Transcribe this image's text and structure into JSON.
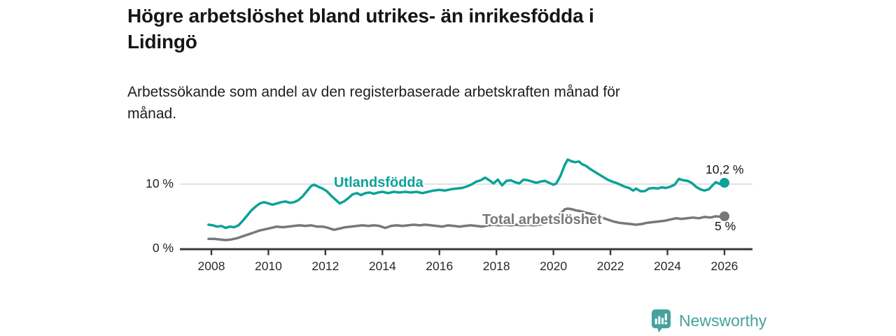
{
  "header": {
    "title": "Högre arbetslöshet bland utrikes- än inrikesfödda i\nLidingö",
    "subtitle": "Arbetssökande som andel av den registerbaserade arbetskraften månad för\nmånad."
  },
  "colors": {
    "accent_teal": "#0ba29a",
    "line_gray": "#77787b",
    "brand_teal": "#46a29d",
    "grid": "#d9d9d9",
    "axis": "#3a3a3a",
    "tick_text": "#2a2a2a"
  },
  "footer": {
    "brand": "Newsworthy"
  },
  "chart_data": {
    "type": "line",
    "title": "Högre arbetslöshet bland utrikes- än inrikesfödda i Lidingö",
    "subtitle": "Arbetssökande som andel av den registerbaserade arbetskraften månad för månad.",
    "unit": "%",
    "grid": "horizontal, only at 10 %",
    "legend_position": "inline labels on lines",
    "x_axis": {
      "ticks": [
        2008,
        2010,
        2012,
        2014,
        2016,
        2018,
        2020,
        2022,
        2024,
        2026
      ],
      "tick_labels": [
        "2008",
        "2010",
        "2012",
        "2014",
        "2016",
        "2018",
        "2020",
        "2022",
        "2024",
        "2026"
      ],
      "xlim": [
        2007.9,
        2027.0
      ]
    },
    "y_axis": {
      "ticks": [
        0,
        10
      ],
      "tick_labels": [
        "0 %",
        "10 %"
      ],
      "ylim": [
        0,
        14.5
      ]
    },
    "series": [
      {
        "name": "Utlandsfödda",
        "color": "#0ba29a",
        "end_label": "10,2 %",
        "end_value": 10.2,
        "points": [
          [
            2007.9,
            3.7
          ],
          [
            2008.05,
            3.6
          ],
          [
            2008.2,
            3.4
          ],
          [
            2008.35,
            3.5
          ],
          [
            2008.5,
            3.2
          ],
          [
            2008.65,
            3.4
          ],
          [
            2008.8,
            3.3
          ],
          [
            2008.95,
            3.6
          ],
          [
            2009.1,
            4.3
          ],
          [
            2009.25,
            5.1
          ],
          [
            2009.4,
            5.9
          ],
          [
            2009.55,
            6.5
          ],
          [
            2009.7,
            7.0
          ],
          [
            2009.85,
            7.2
          ],
          [
            2010.0,
            7.0
          ],
          [
            2010.15,
            6.8
          ],
          [
            2010.3,
            7.0
          ],
          [
            2010.45,
            7.2
          ],
          [
            2010.6,
            7.3
          ],
          [
            2010.75,
            7.1
          ],
          [
            2010.9,
            7.2
          ],
          [
            2011.05,
            7.5
          ],
          [
            2011.2,
            8.1
          ],
          [
            2011.35,
            8.9
          ],
          [
            2011.5,
            9.7
          ],
          [
            2011.6,
            9.9
          ],
          [
            2011.75,
            9.6
          ],
          [
            2011.9,
            9.3
          ],
          [
            2012.05,
            8.9
          ],
          [
            2012.2,
            8.2
          ],
          [
            2012.35,
            7.6
          ],
          [
            2012.5,
            7.0
          ],
          [
            2012.65,
            7.3
          ],
          [
            2012.8,
            7.8
          ],
          [
            2012.95,
            8.4
          ],
          [
            2013.1,
            8.6
          ],
          [
            2013.25,
            8.3
          ],
          [
            2013.4,
            8.6
          ],
          [
            2013.55,
            8.7
          ],
          [
            2013.7,
            8.5
          ],
          [
            2013.85,
            8.7
          ],
          [
            2014.0,
            8.8
          ],
          [
            2014.2,
            8.6
          ],
          [
            2014.4,
            8.8
          ],
          [
            2014.6,
            8.7
          ],
          [
            2014.8,
            8.8
          ],
          [
            2015.0,
            8.7
          ],
          [
            2015.2,
            8.8
          ],
          [
            2015.4,
            8.6
          ],
          [
            2015.6,
            8.8
          ],
          [
            2015.8,
            9.0
          ],
          [
            2016.0,
            9.1
          ],
          [
            2016.2,
            9.0
          ],
          [
            2016.4,
            9.2
          ],
          [
            2016.6,
            9.3
          ],
          [
            2016.8,
            9.4
          ],
          [
            2017.0,
            9.7
          ],
          [
            2017.15,
            10.0
          ],
          [
            2017.3,
            10.4
          ],
          [
            2017.45,
            10.6
          ],
          [
            2017.6,
            11.0
          ],
          [
            2017.75,
            10.6
          ],
          [
            2017.9,
            10.1
          ],
          [
            2018.05,
            10.7
          ],
          [
            2018.2,
            9.8
          ],
          [
            2018.35,
            10.5
          ],
          [
            2018.5,
            10.6
          ],
          [
            2018.65,
            10.3
          ],
          [
            2018.8,
            10.1
          ],
          [
            2018.95,
            10.7
          ],
          [
            2019.1,
            10.6
          ],
          [
            2019.25,
            10.4
          ],
          [
            2019.4,
            10.2
          ],
          [
            2019.55,
            10.4
          ],
          [
            2019.7,
            10.5
          ],
          [
            2019.85,
            10.2
          ],
          [
            2020.0,
            9.9
          ],
          [
            2020.1,
            10.1
          ],
          [
            2020.25,
            11.3
          ],
          [
            2020.4,
            13.0
          ],
          [
            2020.5,
            13.8
          ],
          [
            2020.6,
            13.6
          ],
          [
            2020.75,
            13.4
          ],
          [
            2020.9,
            13.5
          ],
          [
            2021.0,
            13.1
          ],
          [
            2021.15,
            12.8
          ],
          [
            2021.3,
            12.3
          ],
          [
            2021.45,
            11.9
          ],
          [
            2021.6,
            11.5
          ],
          [
            2021.75,
            11.1
          ],
          [
            2021.9,
            10.7
          ],
          [
            2022.05,
            10.4
          ],
          [
            2022.2,
            10.2
          ],
          [
            2022.35,
            9.9
          ],
          [
            2022.5,
            9.6
          ],
          [
            2022.65,
            9.4
          ],
          [
            2022.8,
            9.0
          ],
          [
            2022.9,
            9.3
          ],
          [
            2023.05,
            8.9
          ],
          [
            2023.2,
            8.9
          ],
          [
            2023.35,
            9.3
          ],
          [
            2023.5,
            9.4
          ],
          [
            2023.65,
            9.3
          ],
          [
            2023.8,
            9.5
          ],
          [
            2023.95,
            9.4
          ],
          [
            2024.1,
            9.6
          ],
          [
            2024.25,
            9.9
          ],
          [
            2024.4,
            10.8
          ],
          [
            2024.55,
            10.6
          ],
          [
            2024.7,
            10.5
          ],
          [
            2024.85,
            10.2
          ],
          [
            2025.0,
            9.6
          ],
          [
            2025.15,
            9.2
          ],
          [
            2025.3,
            9.0
          ],
          [
            2025.45,
            9.2
          ],
          [
            2025.6,
            9.9
          ],
          [
            2025.7,
            10.3
          ],
          [
            2025.8,
            10.1
          ],
          [
            2025.9,
            9.9
          ],
          [
            2026.0,
            10.2
          ]
        ]
      },
      {
        "name": "Total arbetslöshet",
        "color": "#77787b",
        "end_label": "5 %",
        "end_value": 5.0,
        "points": [
          [
            2007.9,
            1.5
          ],
          [
            2008.1,
            1.5
          ],
          [
            2008.3,
            1.4
          ],
          [
            2008.5,
            1.3
          ],
          [
            2008.7,
            1.4
          ],
          [
            2008.9,
            1.6
          ],
          [
            2009.1,
            1.9
          ],
          [
            2009.3,
            2.2
          ],
          [
            2009.5,
            2.5
          ],
          [
            2009.7,
            2.8
          ],
          [
            2009.9,
            3.0
          ],
          [
            2010.1,
            3.2
          ],
          [
            2010.3,
            3.4
          ],
          [
            2010.5,
            3.3
          ],
          [
            2010.7,
            3.4
          ],
          [
            2010.9,
            3.5
          ],
          [
            2011.1,
            3.6
          ],
          [
            2011.3,
            3.5
          ],
          [
            2011.5,
            3.6
          ],
          [
            2011.7,
            3.4
          ],
          [
            2011.9,
            3.4
          ],
          [
            2012.1,
            3.2
          ],
          [
            2012.3,
            2.9
          ],
          [
            2012.5,
            3.1
          ],
          [
            2012.7,
            3.3
          ],
          [
            2012.9,
            3.4
          ],
          [
            2013.1,
            3.5
          ],
          [
            2013.3,
            3.6
          ],
          [
            2013.5,
            3.5
          ],
          [
            2013.7,
            3.6
          ],
          [
            2013.9,
            3.5
          ],
          [
            2014.1,
            3.2
          ],
          [
            2014.3,
            3.5
          ],
          [
            2014.5,
            3.6
          ],
          [
            2014.7,
            3.5
          ],
          [
            2014.9,
            3.6
          ],
          [
            2015.1,
            3.7
          ],
          [
            2015.3,
            3.6
          ],
          [
            2015.5,
            3.7
          ],
          [
            2015.7,
            3.6
          ],
          [
            2015.9,
            3.5
          ],
          [
            2016.1,
            3.4
          ],
          [
            2016.3,
            3.6
          ],
          [
            2016.5,
            3.5
          ],
          [
            2016.7,
            3.4
          ],
          [
            2016.9,
            3.5
          ],
          [
            2017.1,
            3.6
          ],
          [
            2017.3,
            3.5
          ],
          [
            2017.5,
            3.4
          ],
          [
            2017.7,
            3.6
          ],
          [
            2017.9,
            3.7
          ],
          [
            2018.1,
            3.6
          ],
          [
            2018.3,
            3.7
          ],
          [
            2018.5,
            3.6
          ],
          [
            2018.7,
            3.7
          ],
          [
            2018.9,
            3.6
          ],
          [
            2019.1,
            3.7
          ],
          [
            2019.3,
            3.6
          ],
          [
            2019.5,
            3.7
          ],
          [
            2019.7,
            3.8
          ],
          [
            2019.9,
            4.0
          ],
          [
            2020.1,
            4.4
          ],
          [
            2020.25,
            5.4
          ],
          [
            2020.4,
            6.1
          ],
          [
            2020.5,
            6.2
          ],
          [
            2020.65,
            6.1
          ],
          [
            2020.8,
            5.9
          ],
          [
            2020.95,
            5.8
          ],
          [
            2021.1,
            5.6
          ],
          [
            2021.3,
            5.4
          ],
          [
            2021.5,
            5.1
          ],
          [
            2021.7,
            4.8
          ],
          [
            2021.9,
            4.5
          ],
          [
            2022.1,
            4.2
          ],
          [
            2022.3,
            4.0
          ],
          [
            2022.5,
            3.9
          ],
          [
            2022.7,
            3.8
          ],
          [
            2022.9,
            3.7
          ],
          [
            2023.1,
            3.8
          ],
          [
            2023.3,
            4.0
          ],
          [
            2023.5,
            4.1
          ],
          [
            2023.7,
            4.2
          ],
          [
            2023.9,
            4.3
          ],
          [
            2024.1,
            4.5
          ],
          [
            2024.3,
            4.7
          ],
          [
            2024.5,
            4.6
          ],
          [
            2024.7,
            4.7
          ],
          [
            2024.9,
            4.8
          ],
          [
            2025.1,
            4.7
          ],
          [
            2025.3,
            4.9
          ],
          [
            2025.5,
            4.8
          ],
          [
            2025.7,
            5.0
          ],
          [
            2025.9,
            4.9
          ],
          [
            2026.0,
            5.0
          ]
        ]
      }
    ]
  }
}
